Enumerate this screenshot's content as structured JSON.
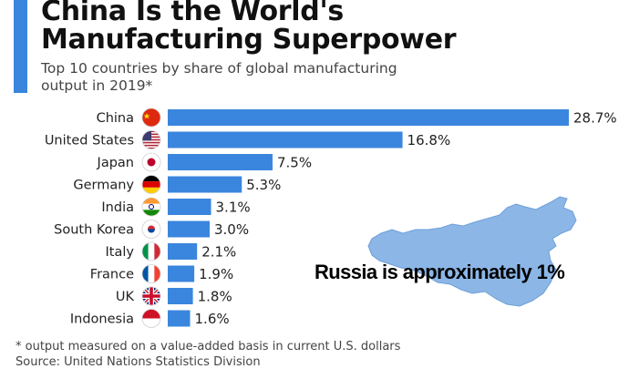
{
  "header": {
    "title_line1": "China Is the World's",
    "title_line2": "Manufacturing Superpower",
    "subtitle_line1": "Top 10 countries by share of global manufacturing",
    "subtitle_line2": "output in 2019*"
  },
  "annotation": "Russia is approximately 1%",
  "footer": {
    "note": "* output measured on a value-added basis in current U.S. dollars",
    "source": "Source: United Nations Statistics Division"
  },
  "colors": {
    "bar": "#3a86de",
    "accent": "#3a86de",
    "map": "#8bb6e6"
  },
  "chart_data": {
    "type": "bar",
    "orientation": "horizontal",
    "title": "China Is the World's Manufacturing Superpower",
    "subtitle": "Top 10 countries by share of global manufacturing output in 2019*",
    "categories": [
      "China",
      "United States",
      "Japan",
      "Germany",
      "India",
      "South Korea",
      "Italy",
      "France",
      "UK",
      "Indonesia"
    ],
    "values": [
      28.7,
      16.8,
      7.5,
      5.3,
      3.1,
      3.0,
      2.1,
      1.9,
      1.8,
      1.6
    ],
    "value_labels": [
      "28.7%",
      "16.8%",
      "7.5%",
      "5.3%",
      "3.1%",
      "3.0%",
      "2.1%",
      "1.9%",
      "1.8%",
      "1.6%"
    ],
    "flags": [
      "china-flag-icon",
      "us-flag-icon",
      "japan-flag-icon",
      "germany-flag-icon",
      "india-flag-icon",
      "south-korea-flag-icon",
      "italy-flag-icon",
      "france-flag-icon",
      "uk-flag-icon",
      "indonesia-flag-icon"
    ],
    "xlabel": "",
    "ylabel": "",
    "xlim": [
      0,
      28.7
    ],
    "grid": false,
    "legend": "none"
  }
}
